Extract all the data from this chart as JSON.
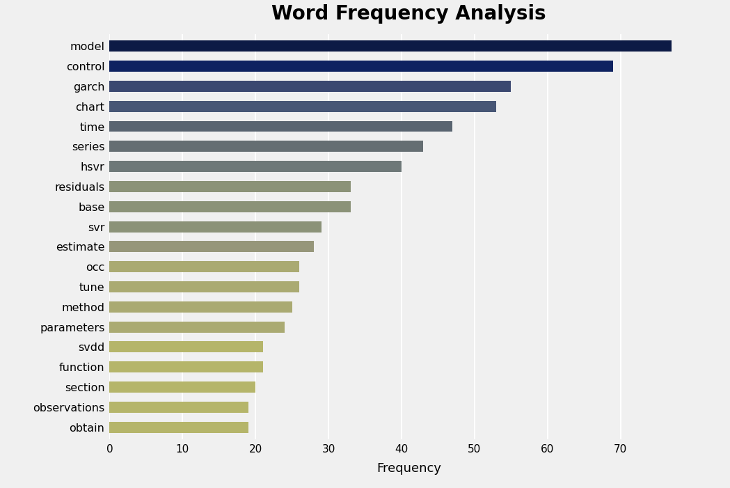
{
  "title": "Word Frequency Analysis",
  "xlabel": "Frequency",
  "categories": [
    "model",
    "control",
    "garch",
    "chart",
    "time",
    "series",
    "hsvr",
    "residuals",
    "base",
    "svr",
    "estimate",
    "occ",
    "tune",
    "method",
    "parameters",
    "svdd",
    "function",
    "section",
    "observations",
    "obtain"
  ],
  "values": [
    77,
    69,
    55,
    53,
    47,
    43,
    40,
    33,
    33,
    29,
    28,
    26,
    26,
    25,
    24,
    21,
    21,
    20,
    19,
    19
  ],
  "bar_colors": [
    "#0c1a45",
    "#0e2260",
    "#3b4870",
    "#475675",
    "#596470",
    "#656e72",
    "#6e7878",
    "#8b9278",
    "#8b9278",
    "#8b9278",
    "#96967a",
    "#aaaa72",
    "#aaaa72",
    "#aaaa72",
    "#aaaa72",
    "#b5b56a",
    "#b5b56a",
    "#b5b56a",
    "#b5b56a",
    "#b5b56a"
  ],
  "background_color": "#f0f0f0",
  "title_fontsize": 20,
  "xlabel_fontsize": 13,
  "xlim": [
    0,
    82
  ],
  "xticks": [
    0,
    10,
    20,
    30,
    40,
    50,
    60,
    70
  ],
  "bar_height": 0.55,
  "figsize": [
    10.49,
    7.01
  ],
  "dpi": 100
}
